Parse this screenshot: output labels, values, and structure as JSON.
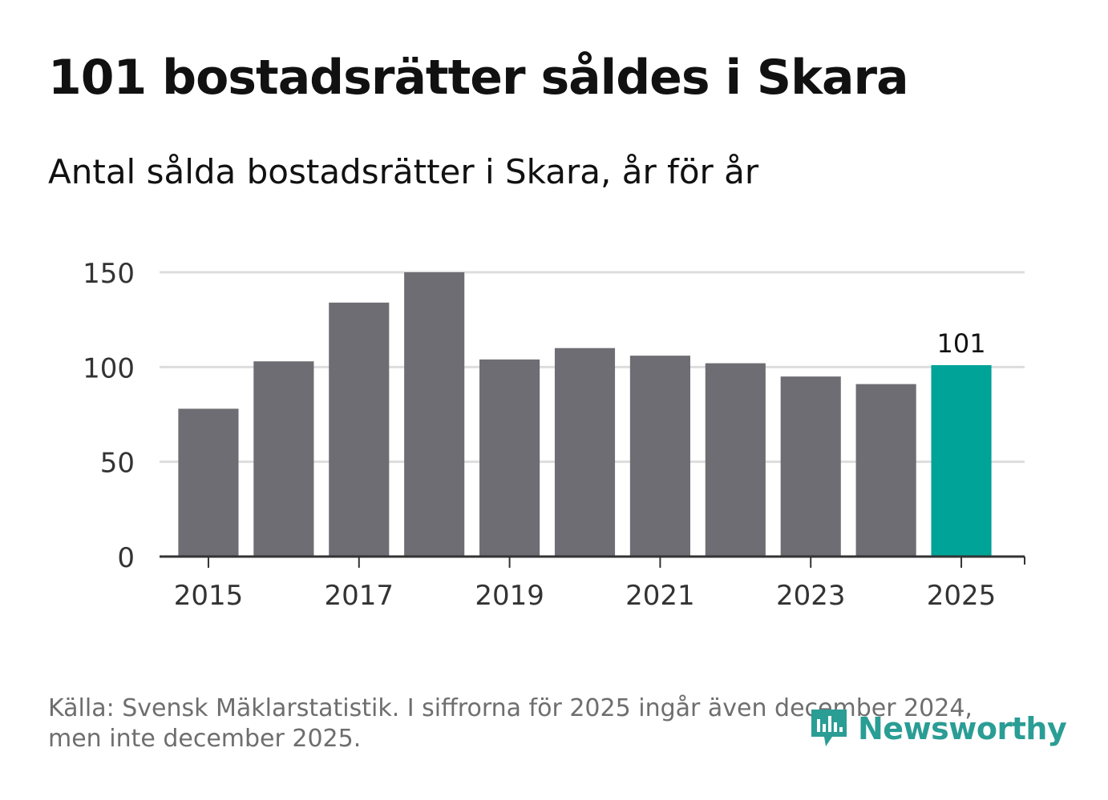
{
  "title": "101 bostadsrätter såldes i Skara",
  "subtitle": "Antal sålda bostadsrätter i Skara, år för år",
  "source": "Källa: Svensk Mäklarstatistik. I siffrorna för 2025 ingår även december 2024, men inte december 2025.",
  "brand": {
    "name": "Newsworthy",
    "color": "#2a9d95"
  },
  "colors": {
    "bar": "#6e6d73",
    "highlight": "#00a398",
    "grid": "#dddddd",
    "axis": "#333333"
  },
  "chart_data": {
    "type": "bar",
    "title": "101 bostadsrätter såldes i Skara",
    "subtitle": "Antal sålda bostadsrätter i Skara, år för år",
    "xlabel": "",
    "ylabel": "",
    "categories": [
      2015,
      2016,
      2017,
      2018,
      2019,
      2020,
      2021,
      2022,
      2023,
      2024,
      2025
    ],
    "values": [
      78,
      103,
      134,
      150,
      104,
      110,
      106,
      102,
      95,
      91,
      101
    ],
    "highlight_category": 2025,
    "data_labels": [
      {
        "category": 2025,
        "label": "101"
      }
    ],
    "ylim": [
      0,
      150
    ],
    "yticks": [
      0,
      50,
      100,
      150
    ],
    "xticks": [
      2015,
      2017,
      2019,
      2021,
      2023,
      2025
    ],
    "grid": true,
    "legend": "none"
  }
}
